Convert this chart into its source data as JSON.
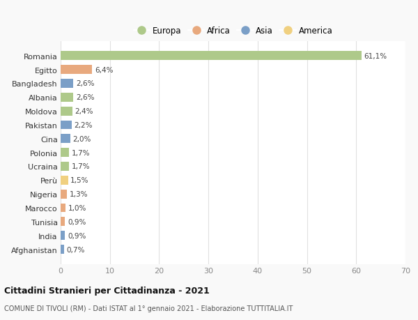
{
  "countries": [
    "Romania",
    "Egitto",
    "Bangladesh",
    "Albania",
    "Moldova",
    "Pakistan",
    "Cina",
    "Polonia",
    "Ucraina",
    "Perù",
    "Nigeria",
    "Marocco",
    "Tunisia",
    "India",
    "Afghanistan"
  ],
  "values": [
    61.1,
    6.4,
    2.6,
    2.6,
    2.4,
    2.2,
    2.0,
    1.7,
    1.7,
    1.5,
    1.3,
    1.0,
    0.9,
    0.9,
    0.7
  ],
  "labels": [
    "61,1%",
    "6,4%",
    "2,6%",
    "2,6%",
    "2,4%",
    "2,2%",
    "2,0%",
    "1,7%",
    "1,7%",
    "1,5%",
    "1,3%",
    "1,0%",
    "0,9%",
    "0,9%",
    "0,7%"
  ],
  "continents": [
    "Europa",
    "Africa",
    "Asia",
    "Europa",
    "Europa",
    "Asia",
    "Asia",
    "Europa",
    "Europa",
    "America",
    "Africa",
    "Africa",
    "Africa",
    "Asia",
    "Asia"
  ],
  "continent_colors": {
    "Europa": "#aec98a",
    "Africa": "#e8a97e",
    "Asia": "#7b9fc7",
    "America": "#f0d080"
  },
  "legend_order": [
    "Europa",
    "Africa",
    "Asia",
    "America"
  ],
  "xlim": [
    0,
    70
  ],
  "xticks": [
    0,
    10,
    20,
    30,
    40,
    50,
    60,
    70
  ],
  "title": "Cittadini Stranieri per Cittadinanza - 2021",
  "subtitle": "COMUNE DI TIVOLI (RM) - Dati ISTAT al 1° gennaio 2021 - Elaborazione TUTTITALIA.IT",
  "bg_color": "#f9f9f9",
  "plot_bg_color": "#ffffff",
  "grid_color": "#e0e0e0",
  "bar_height": 0.65
}
